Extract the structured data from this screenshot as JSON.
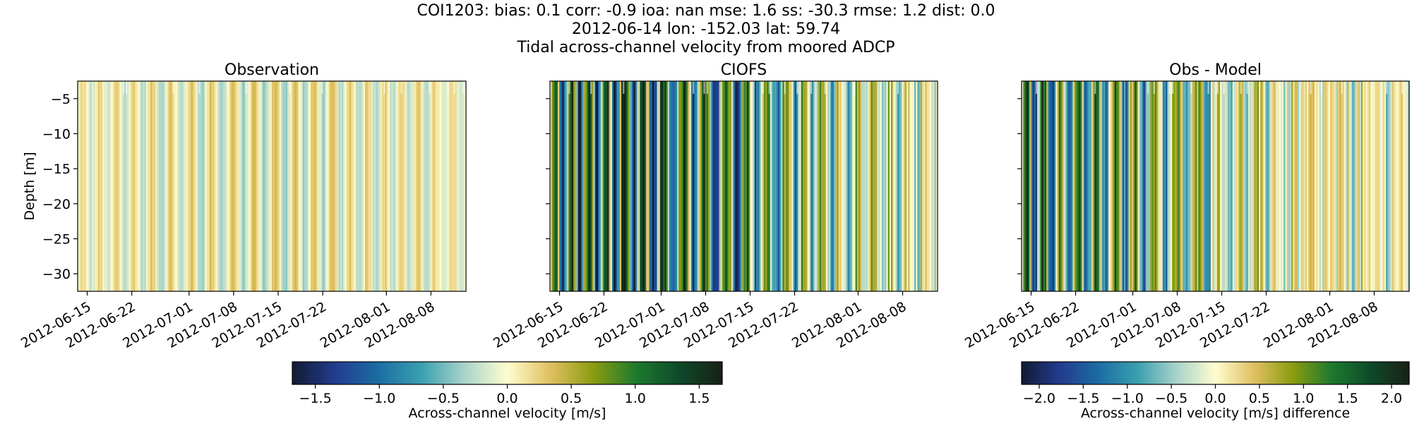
{
  "figure": {
    "title_lines": [
      "COI1203: bias: 0.1  corr: -0.9  ioa: nan  mse: 1.6  ss: -30.3  rmse: 1.2  dist: 0.0",
      "2012-06-14 lon: -152.03 lat: 59.74",
      "Tidal across-channel velocity from moored ADCP"
    ]
  },
  "chart_data": [
    {
      "type": "heatmap",
      "title": "Observation",
      "ylabel": "Depth [m]",
      "xlabel": "",
      "ylim": [
        -32.5,
        -2.5
      ],
      "yticks": [
        -5,
        -10,
        -15,
        -20,
        -25,
        -30
      ],
      "yticklabels": [
        "−5",
        "−10",
        "−15",
        "−20",
        "−25",
        "−30"
      ],
      "xrange_days": [
        -0.5,
        60.5
      ],
      "xticks_days": [
        1,
        8,
        17,
        24,
        31,
        38,
        48,
        55
      ],
      "xticklabels": [
        "2012-06-15",
        "2012-06-22",
        "2012-07-01",
        "2012-07-08",
        "2012-07-15",
        "2012-07-22",
        "2012-08-01",
        "2012-08-08"
      ],
      "amplitude_ms": 0.35,
      "colorbar": "velocity"
    },
    {
      "type": "heatmap",
      "title": "CIOFS",
      "ylabel": "",
      "xlabel": "",
      "ylim": [
        -32.5,
        -2.5
      ],
      "yticks": [
        -5,
        -10,
        -15,
        -20,
        -25,
        -30
      ],
      "yticklabels": [
        "",
        "",
        "",
        "",
        "",
        ""
      ],
      "xrange_days": [
        -0.5,
        60.5
      ],
      "xticks_days": [
        1,
        8,
        17,
        24,
        31,
        38,
        48,
        55
      ],
      "xticklabels": [
        "2012-06-15",
        "2012-06-22",
        "2012-07-01",
        "2012-07-08",
        "2012-07-15",
        "2012-07-22",
        "2012-08-01",
        "2012-08-08"
      ],
      "amplitude_ms": 1.5,
      "colorbar": "velocity"
    },
    {
      "type": "heatmap",
      "title": "Obs - Model",
      "ylabel": "",
      "xlabel": "",
      "ylim": [
        -32.5,
        -2.5
      ],
      "yticks": [
        -5,
        -10,
        -15,
        -20,
        -25,
        -30
      ],
      "yticklabels": [
        "",
        "",
        "",
        "",
        "",
        ""
      ],
      "xrange_days": [
        -0.5,
        60.5
      ],
      "xticks_days": [
        1,
        8,
        17,
        24,
        31,
        38,
        48,
        55
      ],
      "xticklabels": [
        "2012-06-15",
        "2012-06-22",
        "2012-07-01",
        "2012-07-08",
        "2012-07-15",
        "2012-07-22",
        "2012-08-01",
        "2012-08-08"
      ],
      "amplitude_ms": 1.9,
      "colorbar": "difference"
    }
  ],
  "colorbars": {
    "velocity": {
      "label": "Across-channel velocity [m/s]",
      "range": [
        -1.68,
        1.68
      ],
      "ticks": [
        -1.5,
        -1.0,
        -0.5,
        0.0,
        0.5,
        1.0,
        1.5
      ],
      "ticklabels": [
        "−1.5",
        "−1.0",
        "−0.5",
        "0.0",
        "0.5",
        "1.0",
        "1.5"
      ]
    },
    "difference": {
      "label": "Across-channel velocity [m/s] difference",
      "range": [
        -2.2,
        2.2
      ],
      "ticks": [
        -2.0,
        -1.5,
        -1.0,
        -0.5,
        0.0,
        0.5,
        1.0,
        1.5,
        2.0
      ],
      "ticklabels": [
        "−2.0",
        "−1.5",
        "−1.0",
        "−0.5",
        "0.0",
        "0.5",
        "1.0",
        "1.5",
        "2.0"
      ]
    }
  },
  "colormap": {
    "name": "cmocean delta",
    "stops": [
      "#111b33",
      "#233c8f",
      "#1b6da3",
      "#3aa0b0",
      "#a8d3c9",
      "#fffdcf",
      "#e0c060",
      "#8a9c10",
      "#1d7a2e",
      "#0e4a2a",
      "#1a2017"
    ]
  }
}
